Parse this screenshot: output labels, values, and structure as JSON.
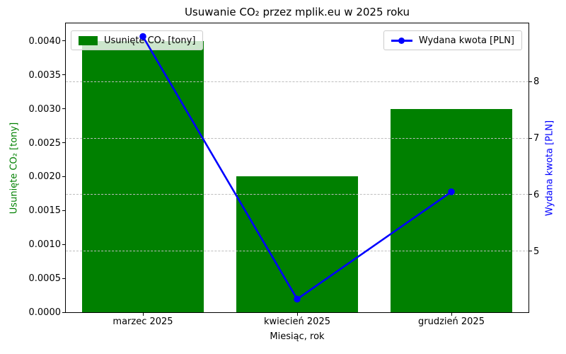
{
  "title": "Usuwanie CO₂ przez mplik.eu w 2025 roku",
  "chart_data": {
    "type": "bar",
    "subtype": "bar+line dual axis",
    "title": "Usuwanie CO₂ przez mplik.eu w 2025 roku",
    "categories": [
      "marzec 2025",
      "kwiecień 2025",
      "grudzień 2025"
    ],
    "series": [
      {
        "name": "Usunięte CO₂ [tony]",
        "type": "bar",
        "axis": "left",
        "color": "#008000",
        "values": [
          0.004,
          0.002,
          0.003
        ]
      },
      {
        "name": "Wydana kwota [PLN]",
        "type": "line",
        "axis": "right",
        "color": "#0000ff",
        "marker": "circle",
        "values": [
          8.8,
          4.15,
          6.05
        ]
      }
    ],
    "xlabel": "Miesiąc, rok",
    "ylabel_left": "Usunięte CO₂ [tony]",
    "ylabel_right": "Wydana kwota [PLN]",
    "left_axis": {
      "ticks": [
        "0.0000",
        "0.0005",
        "0.0010",
        "0.0015",
        "0.0020",
        "0.0025",
        "0.0030",
        "0.0035",
        "0.0040"
      ],
      "lim": [
        0,
        0.00426
      ],
      "label_color": "#008000",
      "tick_color": "#000000"
    },
    "right_axis": {
      "ticks": [
        "5",
        "6",
        "7",
        "8"
      ],
      "lim": [
        3.9175,
        9.0325
      ],
      "label_color": "#0000ff",
      "tick_color": "#000000"
    },
    "grid": {
      "axis": "y-right",
      "style": "dashed",
      "color": "#bdbdbd",
      "on": true
    },
    "legend": {
      "left_position": "upper left",
      "right_position": "upper right"
    },
    "bar_width_frac": 0.79
  }
}
